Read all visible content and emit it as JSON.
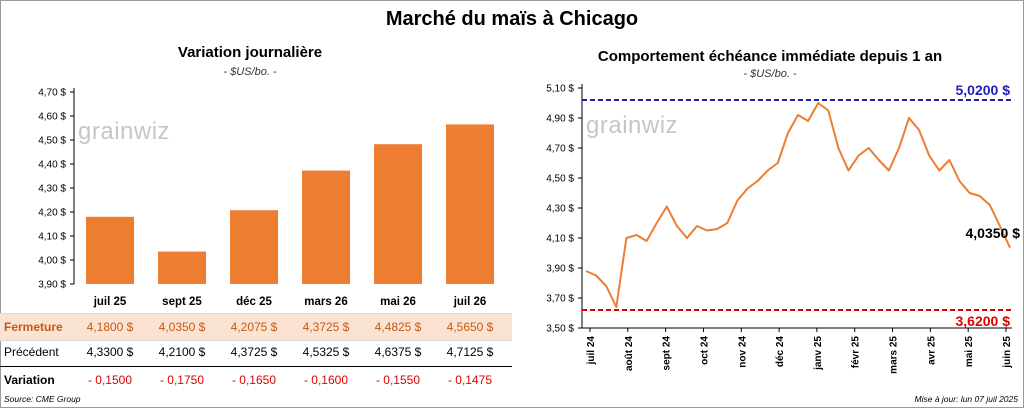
{
  "title": "Marché du maïs à Chicago",
  "left": {
    "title": "Variation journalière",
    "unit": "- $US/bo. -",
    "watermark": "grainwiz",
    "row_labels": {
      "closing": "Fermeture",
      "previous": "Précédent",
      "variation": "Variation"
    },
    "closing_values": [
      "4,1800  $",
      "4,0350  $",
      "4,2075  $",
      "4,3725  $",
      "4,4825  $",
      "4,5650  $"
    ],
    "previous_values": [
      "4,3300  $",
      "4,2100  $",
      "4,3725  $",
      "4,5325  $",
      "4,6375  $",
      "4,7125  $"
    ],
    "variation_values": [
      "- 0,1500",
      "- 0,1750",
      "- 0,1650",
      "- 0,1600",
      "- 0,1550",
      "- 0,1475"
    ]
  },
  "right": {
    "title": "Comportement  échéance immédiate depuis 1 an",
    "unit": "- $US/bo. -",
    "watermark": "grainwiz",
    "high_label": "5,0200 $",
    "low_label": "3,6200 $",
    "last_label": "4,0350 $"
  },
  "source": "Source: CME Group",
  "updated": "Mise à jour: lun 07 juil 2025",
  "colors": {
    "bar": "#ed7d31",
    "line": "#ed7d31",
    "high": "#1f1fb4",
    "low": "#e00000",
    "closing_bg": "#fbe3d4"
  },
  "chart_data": [
    {
      "type": "bar",
      "title": "Variation journalière",
      "ylabel": "$US/bo.",
      "categories": [
        "juil 25",
        "sept 25",
        "déc 25",
        "mars 26",
        "mai 26",
        "juil 26"
      ],
      "values": [
        4.18,
        4.035,
        4.2075,
        4.3725,
        4.4825,
        4.565
      ],
      "ylim": [
        3.9,
        4.7
      ],
      "yticks": [
        "3,90 $",
        "4,00 $",
        "4,10 $",
        "4,20 $",
        "4,30 $",
        "4,40 $",
        "4,50 $",
        "4,60 $",
        "4,70 $"
      ],
      "grid": false
    },
    {
      "type": "line",
      "title": "Comportement  échéance immédiate depuis 1 an",
      "ylabel": "$US/bo.",
      "x": [
        "juil 24",
        "juil 24",
        "juil 24",
        "août 24",
        "août 24",
        "août 24",
        "août 24",
        "sept 24",
        "sept 24",
        "sept 24",
        "sept 24",
        "oct 24",
        "oct 24",
        "oct 24",
        "nov 24",
        "nov 24",
        "nov 24",
        "déc 24",
        "déc 24",
        "déc 24",
        "janv 25",
        "janv 25",
        "janv 25",
        "janv 25",
        "févr 25",
        "févr 25",
        "févr 25",
        "févr 25",
        "mars 25",
        "mars 25",
        "mars 25",
        "mars 25",
        "avr 25",
        "avr 25",
        "avr 25",
        "avr 25",
        "mai 25",
        "mai 25",
        "mai 25",
        "juin 25",
        "juin 25",
        "juin 25",
        "juil 25"
      ],
      "values": [
        3.88,
        3.85,
        3.78,
        3.64,
        4.1,
        4.12,
        4.08,
        4.2,
        4.31,
        4.18,
        4.1,
        4.18,
        4.15,
        4.16,
        4.2,
        4.35,
        4.43,
        4.48,
        4.55,
        4.6,
        4.8,
        4.92,
        4.88,
        5.0,
        4.95,
        4.7,
        4.55,
        4.65,
        4.7,
        4.62,
        4.55,
        4.7,
        4.9,
        4.82,
        4.65,
        4.55,
        4.62,
        4.48,
        4.4,
        4.38,
        4.32,
        4.18,
        4.035
      ],
      "xticks": [
        "juil 24",
        "août 24",
        "sept 24",
        "oct 24",
        "nov 24",
        "déc 24",
        "janv 25",
        "févr 25",
        "mars 25",
        "avr 25",
        "mai 25",
        "juin 25"
      ],
      "ylim": [
        3.5,
        5.1
      ],
      "yticks": [
        "3,50 $",
        "3,70 $",
        "3,90 $",
        "4,10 $",
        "4,30 $",
        "4,50 $",
        "4,70 $",
        "4,90 $",
        "5,10 $"
      ],
      "reference_lines": [
        {
          "value": 5.02,
          "label": "5,0200 $"
        },
        {
          "value": 3.62,
          "label": "3,6200 $"
        }
      ],
      "last_value_label": "4,0350 $",
      "grid": false
    }
  ]
}
